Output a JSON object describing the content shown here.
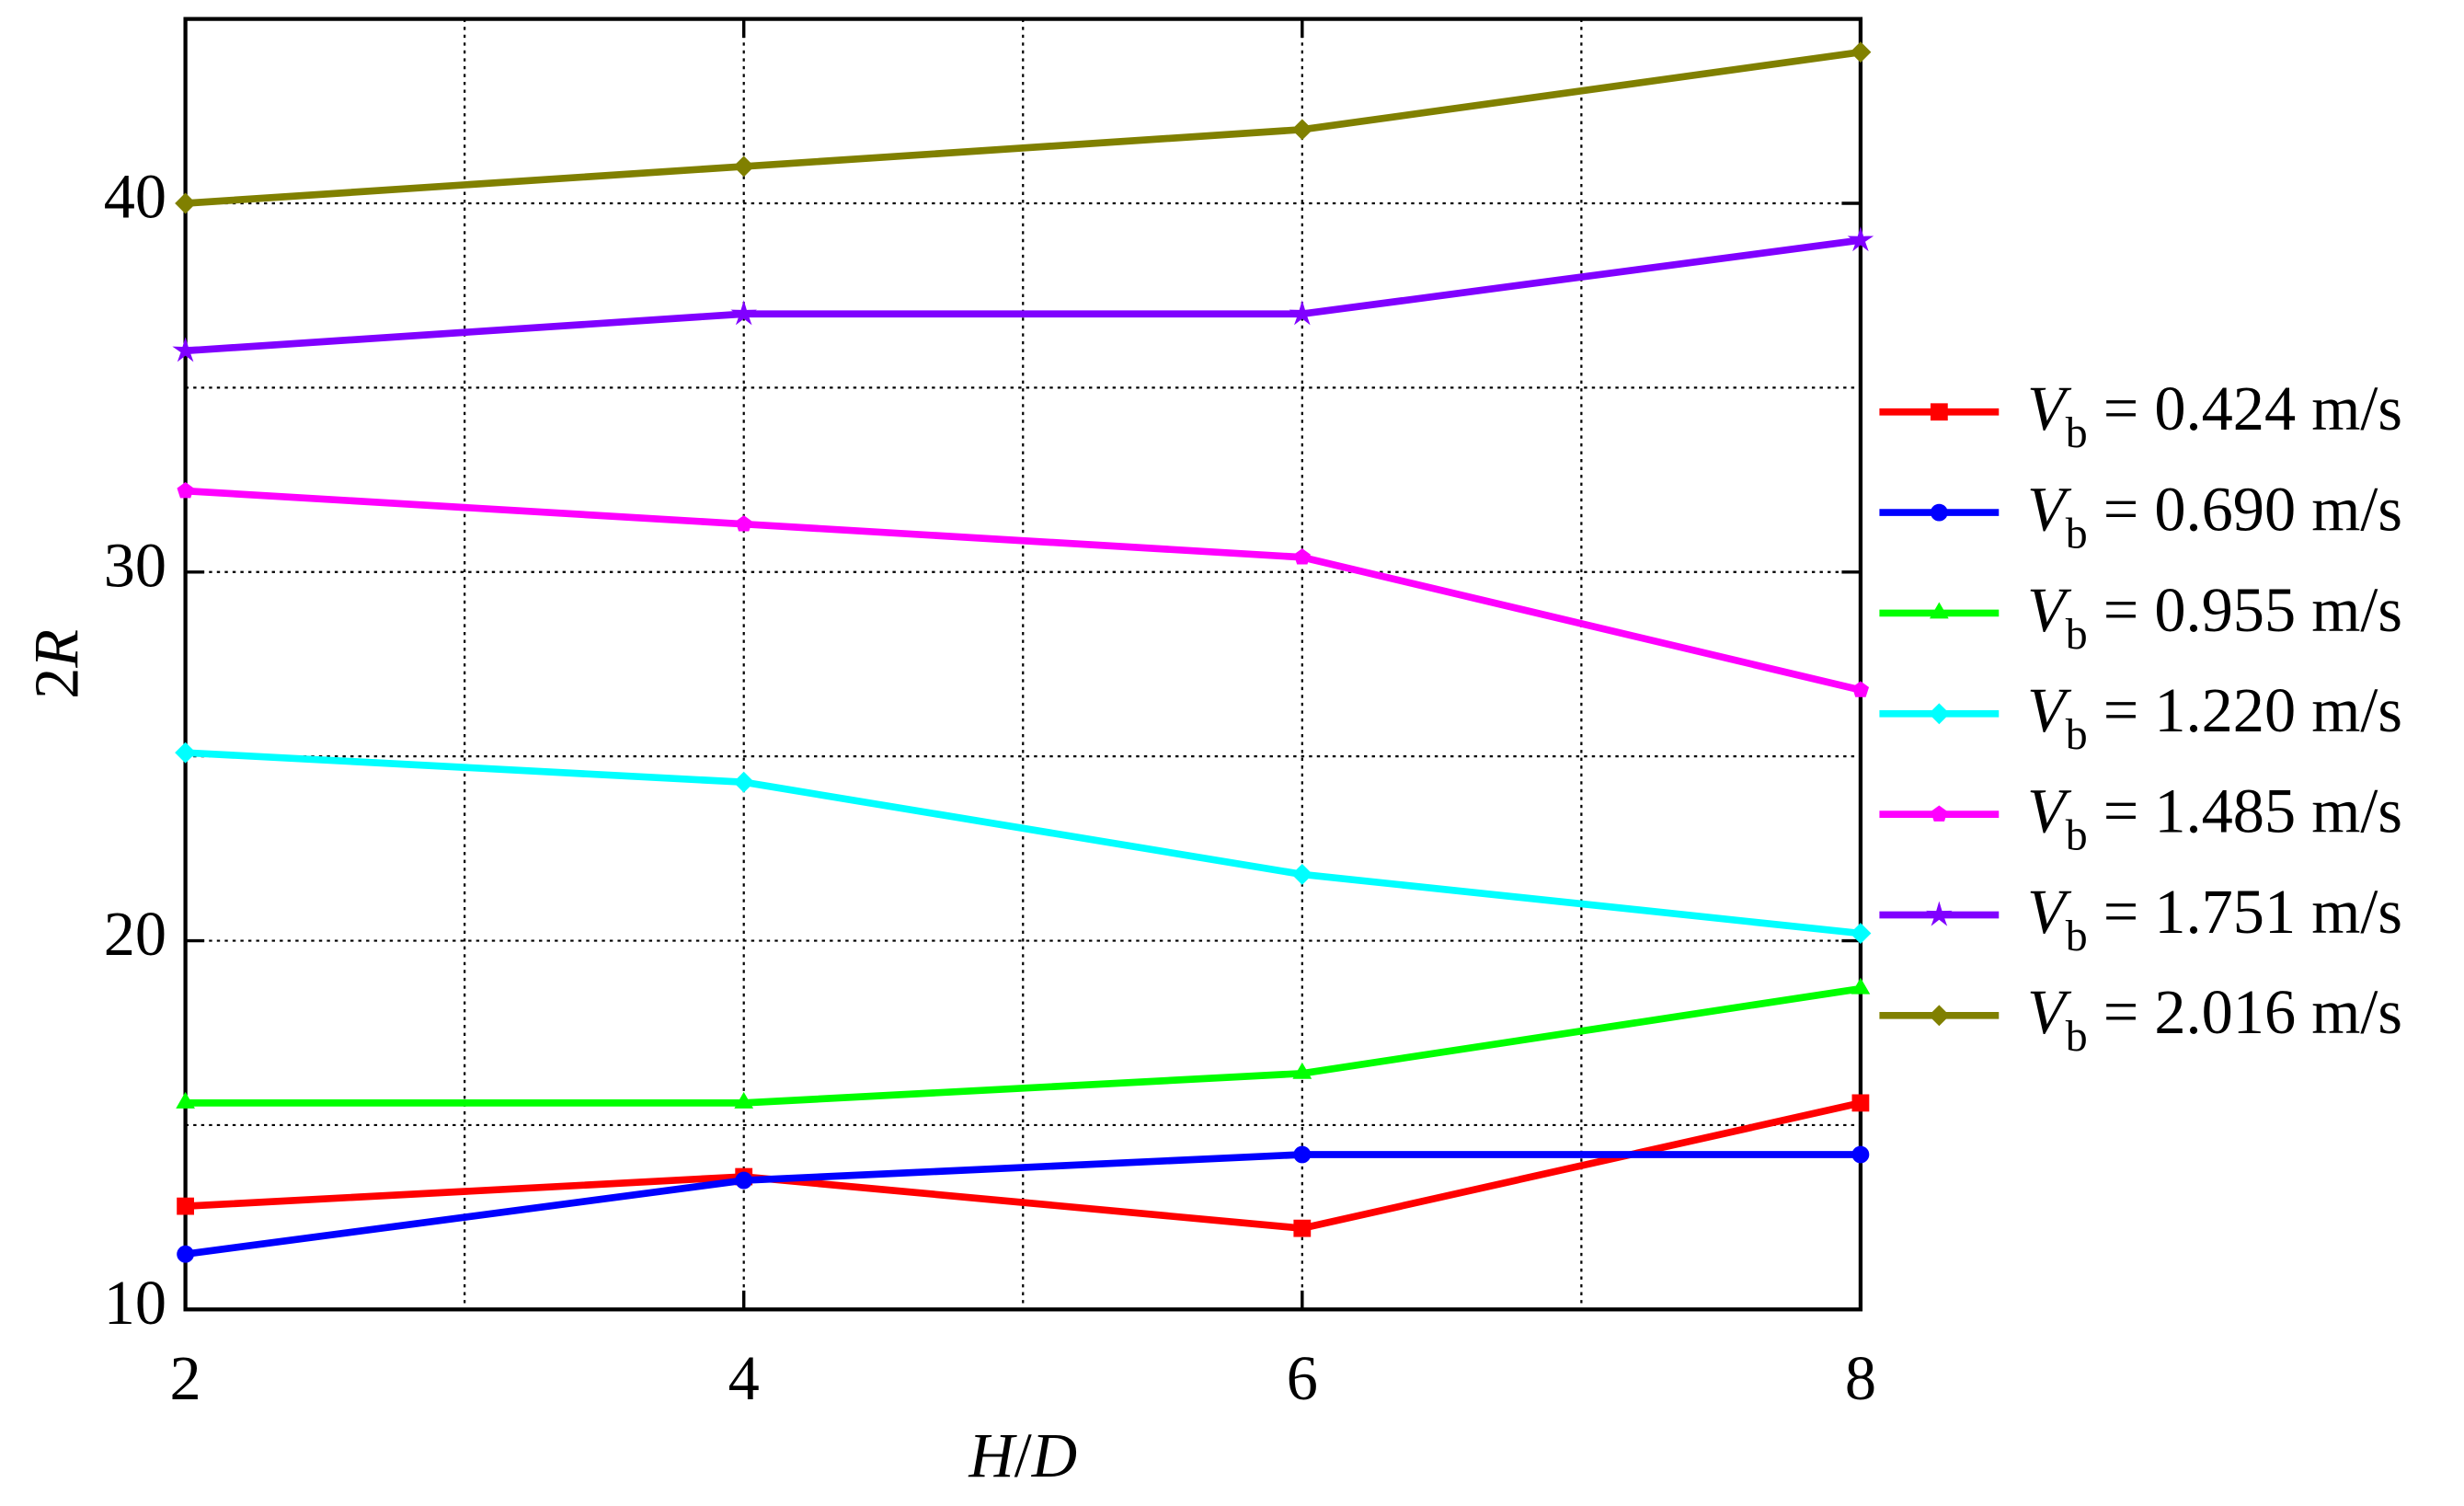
{
  "chart_data": {
    "type": "line",
    "x_label": "H/D",
    "y_label": "2R",
    "x": [
      2,
      4,
      6,
      8
    ],
    "xlim": [
      2,
      8
    ],
    "xticks": [
      2,
      4,
      6,
      8
    ],
    "ylim": [
      10,
      45
    ],
    "yticks": [
      10,
      20,
      30,
      40
    ],
    "grid": true,
    "legend": "right",
    "series": [
      {
        "name": "Vb = 0.424 m/s",
        "color": "#ff0000",
        "marker": "square",
        "values": [
          12.8,
          13.6,
          12.2,
          15.6
        ]
      },
      {
        "name": "Vb = 0.690 m/s",
        "color": "#0000ff",
        "marker": "circle",
        "values": [
          11.5,
          13.5,
          14.2,
          14.2
        ]
      },
      {
        "name": "Vb = 0.955 m/s",
        "color": "#00ff00",
        "marker": "triangle",
        "values": [
          15.6,
          15.6,
          16.4,
          18.7
        ]
      },
      {
        "name": "Vb = 1.220 m/s",
        "color": "#00ffff",
        "marker": "diamond",
        "values": [
          25.1,
          24.3,
          21.8,
          20.2
        ]
      },
      {
        "name": "Vb = 1.485 m/s",
        "color": "#ff00ff",
        "marker": "pentagon",
        "values": [
          32.2,
          31.3,
          30.4,
          26.8
        ]
      },
      {
        "name": "Vb = 1.751 m/s",
        "color": "#8000ff",
        "marker": "star",
        "values": [
          36,
          37,
          37,
          39
        ]
      },
      {
        "name": "Vb = 2.016 m/s",
        "color": "#808000",
        "marker": "diamond",
        "values": [
          40,
          41,
          42,
          44.1
        ]
      }
    ]
  }
}
